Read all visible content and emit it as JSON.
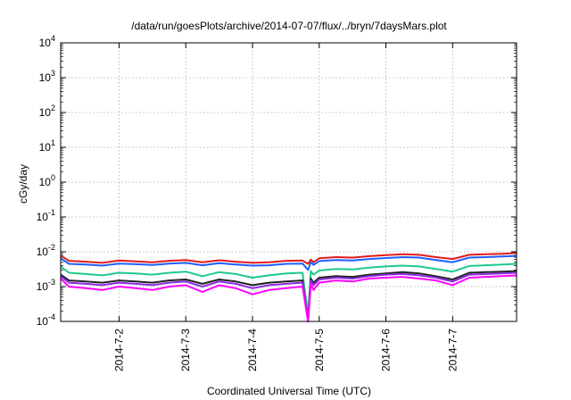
{
  "chart_data": {
    "type": "line",
    "title": "/data/run/goesPlots/archive/2014-07-07/flux/../bryn/7daysMars.plot",
    "xlabel": "Coordinated Universal Time (UTC)",
    "ylabel": "cGy/day",
    "y_scale": "log",
    "ylim": [
      0.0001,
      10000
    ],
    "xlim": [
      "2014-07-01 03:00",
      "2014-07-07 23:00"
    ],
    "grid": true,
    "x_ticks": [
      {
        "date": "2014-07-02",
        "label": "2014-7-2"
      },
      {
        "date": "2014-07-03",
        "label": "2014-7-3"
      },
      {
        "date": "2014-07-04",
        "label": "2014-7-4"
      },
      {
        "date": "2014-07-05",
        "label": "2014-7-5"
      },
      {
        "date": "2014-07-06",
        "label": "2014-7-6"
      },
      {
        "date": "2014-07-07",
        "label": "2014-7-7"
      }
    ],
    "y_ticks": [
      {
        "value": 0.0001,
        "base": "10",
        "exp": "-4"
      },
      {
        "value": 0.001,
        "base": "10",
        "exp": "-3"
      },
      {
        "value": 0.01,
        "base": "10",
        "exp": "-2"
      },
      {
        "value": 0.1,
        "base": "10",
        "exp": "-1"
      },
      {
        "value": 1,
        "base": "10",
        "exp": "0"
      },
      {
        "value": 10,
        "base": "10",
        "exp": "1"
      },
      {
        "value": 100,
        "base": "10",
        "exp": "2"
      },
      {
        "value": 1000,
        "base": "10",
        "exp": "3"
      },
      {
        "value": 10000,
        "base": "10",
        "exp": "4"
      }
    ],
    "x": [
      "2014-07-01 03:00",
      "2014-07-01 06:00",
      "2014-07-01 12:00",
      "2014-07-01 18:00",
      "2014-07-02 00:00",
      "2014-07-02 06:00",
      "2014-07-02 12:00",
      "2014-07-02 18:00",
      "2014-07-03 00:00",
      "2014-07-03 06:00",
      "2014-07-03 12:00",
      "2014-07-03 18:00",
      "2014-07-04 00:00",
      "2014-07-04 06:00",
      "2014-07-04 12:00",
      "2014-07-04 18:00",
      "2014-07-04 20:00",
      "2014-07-04 21:00",
      "2014-07-04 22:00",
      "2014-07-05 00:00",
      "2014-07-05 06:00",
      "2014-07-05 12:00",
      "2014-07-05 18:00",
      "2014-07-06 00:00",
      "2014-07-06 06:00",
      "2014-07-06 12:00",
      "2014-07-06 18:00",
      "2014-07-07 00:00",
      "2014-07-07 06:00",
      "2014-07-07 12:00",
      "2014-07-07 18:00",
      "2014-07-07 23:00"
    ],
    "series": [
      {
        "color": "#e41a1c",
        "values": [
          0.0078,
          0.0055,
          0.0052,
          0.0048,
          0.0056,
          0.0053,
          0.005,
          0.0055,
          0.0058,
          0.005,
          0.0057,
          0.0052,
          0.0048,
          0.005,
          0.0055,
          0.0056,
          0.0045,
          0.006,
          0.005,
          0.0065,
          0.007,
          0.0068,
          0.0075,
          0.008,
          0.0085,
          0.0082,
          0.007,
          0.0062,
          0.0082,
          0.0085,
          0.0088,
          0.0092
        ]
      },
      {
        "color": "#1f5fff",
        "values": [
          0.0065,
          0.0045,
          0.0043,
          0.004,
          0.0046,
          0.0044,
          0.0042,
          0.0046,
          0.0048,
          0.0041,
          0.0047,
          0.0043,
          0.004,
          0.0041,
          0.0045,
          0.0046,
          0.003,
          0.005,
          0.0042,
          0.0054,
          0.0058,
          0.0056,
          0.0062,
          0.0066,
          0.007,
          0.0068,
          0.0058,
          0.005,
          0.0068,
          0.007,
          0.0073,
          0.0076
        ]
      },
      {
        "color": "#1fc98a",
        "values": [
          0.0038,
          0.0025,
          0.0023,
          0.0021,
          0.0025,
          0.0024,
          0.0022,
          0.0025,
          0.0027,
          0.002,
          0.0026,
          0.0023,
          0.0018,
          0.0021,
          0.0024,
          0.0025,
          0.00015,
          0.0028,
          0.0022,
          0.0029,
          0.0032,
          0.0031,
          0.0035,
          0.0038,
          0.004,
          0.0038,
          0.0032,
          0.0027,
          0.0039,
          0.0041,
          0.0043,
          0.0045
        ]
      },
      {
        "color": "#222222",
        "values": [
          0.0022,
          0.0015,
          0.0014,
          0.0013,
          0.0015,
          0.0014,
          0.0013,
          0.0015,
          0.0016,
          0.0012,
          0.0016,
          0.0014,
          0.0011,
          0.0013,
          0.0014,
          0.0015,
          9e-05,
          0.0017,
          0.0013,
          0.0018,
          0.002,
          0.0019,
          0.0022,
          0.0024,
          0.0026,
          0.0024,
          0.002,
          0.0016,
          0.0025,
          0.0026,
          0.0027,
          0.0028
        ]
      },
      {
        "color": "#8a2be2",
        "values": [
          0.002,
          0.0013,
          0.0012,
          0.0011,
          0.0013,
          0.0012,
          0.0011,
          0.0013,
          0.0014,
          0.001,
          0.0014,
          0.0012,
          0.0009,
          0.0011,
          0.0012,
          0.0013,
          8e-05,
          0.0015,
          0.0011,
          0.0016,
          0.0018,
          0.0017,
          0.002,
          0.0022,
          0.0023,
          0.0021,
          0.0018,
          0.0014,
          0.0022,
          0.0023,
          0.0024,
          0.0025
        ]
      },
      {
        "color": "#ff00ff",
        "values": [
          0.0017,
          0.001,
          0.0009,
          0.0008,
          0.001,
          0.0009,
          0.0008,
          0.001,
          0.0011,
          0.0007,
          0.0011,
          0.0009,
          0.0006,
          0.0008,
          0.0009,
          0.001,
          6e-05,
          0.0012,
          0.0008,
          0.0013,
          0.0015,
          0.0014,
          0.0017,
          0.0018,
          0.0019,
          0.0017,
          0.0015,
          0.0011,
          0.0018,
          0.0019,
          0.002,
          0.0021
        ]
      }
    ]
  }
}
